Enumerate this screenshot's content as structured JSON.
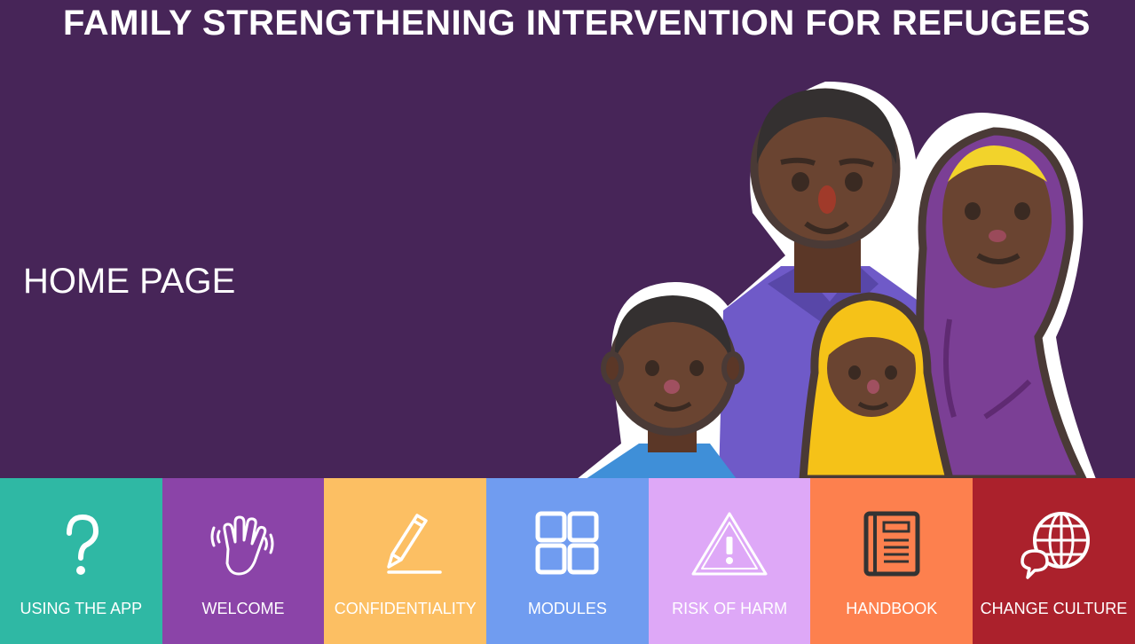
{
  "app": {
    "title": "FAMILY STRENGTHENING INTERVENTION FOR REFUGEES"
  },
  "page": {
    "title": "HOME PAGE"
  },
  "colors": {
    "background": "#472558",
    "skin_dark": "#5e3a2c",
    "outline": "#4a3a36"
  },
  "tiles": [
    {
      "label": "USING THE APP",
      "icon": "question-mark-icon",
      "color": "#2fb8a4"
    },
    {
      "label": "WELCOME",
      "icon": "waving-hand-icon",
      "color": "#8b44a8"
    },
    {
      "label": "CONFIDENTIALITY",
      "icon": "pen-icon",
      "color": "#fcbf63"
    },
    {
      "label": "MODULES",
      "icon": "grid-icon",
      "color": "#709cf0"
    },
    {
      "label": "RISK OF HARM",
      "icon": "warning-icon",
      "color": "#dea8f7"
    },
    {
      "label": "HANDBOOK",
      "icon": "book-icon",
      "color": "#fd804e"
    },
    {
      "label": "CHANGE CULTURE",
      "icon": "globe-chat-icon",
      "color": "#ab212c"
    }
  ]
}
